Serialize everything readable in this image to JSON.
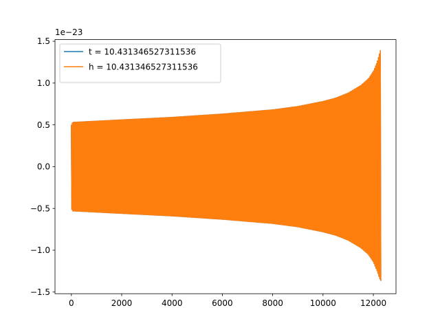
{
  "chart_data": {
    "type": "line",
    "title": "",
    "xlabel": "",
    "ylabel": "",
    "y_offset_label": "1e−23",
    "xlim": [
      -650,
      12900
    ],
    "ylim": [
      -1.52,
      1.52
    ],
    "x_ticks": [
      0,
      2000,
      4000,
      6000,
      8000,
      10000,
      12000
    ],
    "x_tick_labels": [
      "0",
      "2000",
      "4000",
      "6000",
      "8000",
      "10000",
      "12000"
    ],
    "y_ticks": [
      -1.5,
      -1.0,
      -0.5,
      0.0,
      0.5,
      1.0,
      1.5
    ],
    "y_tick_labels": [
      "−1.5",
      "−1.0",
      "−0.5",
      "0.0",
      "0.5",
      "1.0",
      "1.5"
    ],
    "grid": false,
    "legend_position": "top-left",
    "series": [
      {
        "name": "t = 10.431346527311536",
        "color": "#1f77b4",
        "description": "oscillating waveform hidden beneath the h series",
        "envelope": {
          "x": [
            0,
            50,
            2000,
            4000,
            6000,
            8000,
            9000,
            10000,
            10500,
            11000,
            11500,
            11800,
            12000,
            12150,
            12250,
            12300
          ],
          "upper": [
            0.5,
            0.53,
            0.56,
            0.59,
            0.63,
            0.68,
            0.72,
            0.78,
            0.82,
            0.88,
            0.97,
            1.05,
            1.14,
            1.25,
            1.36,
            1.41
          ],
          "lower": [
            -0.5,
            -0.53,
            -0.56,
            -0.59,
            -0.63,
            -0.68,
            -0.72,
            -0.78,
            -0.82,
            -0.88,
            -0.97,
            -1.05,
            -1.14,
            -1.25,
            -1.34,
            -1.37
          ]
        }
      },
      {
        "name": "h = 10.431346527311536",
        "color": "#ff7f0e",
        "description": "chirp waveform drawn on top",
        "envelope": {
          "x": [
            0,
            50,
            2000,
            4000,
            6000,
            8000,
            9000,
            10000,
            10500,
            11000,
            11500,
            11800,
            12000,
            12150,
            12250,
            12300
          ],
          "upper": [
            0.5,
            0.53,
            0.56,
            0.59,
            0.63,
            0.68,
            0.72,
            0.78,
            0.82,
            0.88,
            0.97,
            1.05,
            1.14,
            1.25,
            1.36,
            1.41
          ],
          "lower": [
            -0.5,
            -0.53,
            -0.56,
            -0.59,
            -0.63,
            -0.68,
            -0.72,
            -0.78,
            -0.82,
            -0.88,
            -0.97,
            -1.05,
            -1.14,
            -1.25,
            -1.34,
            -1.37
          ]
        }
      }
    ]
  }
}
